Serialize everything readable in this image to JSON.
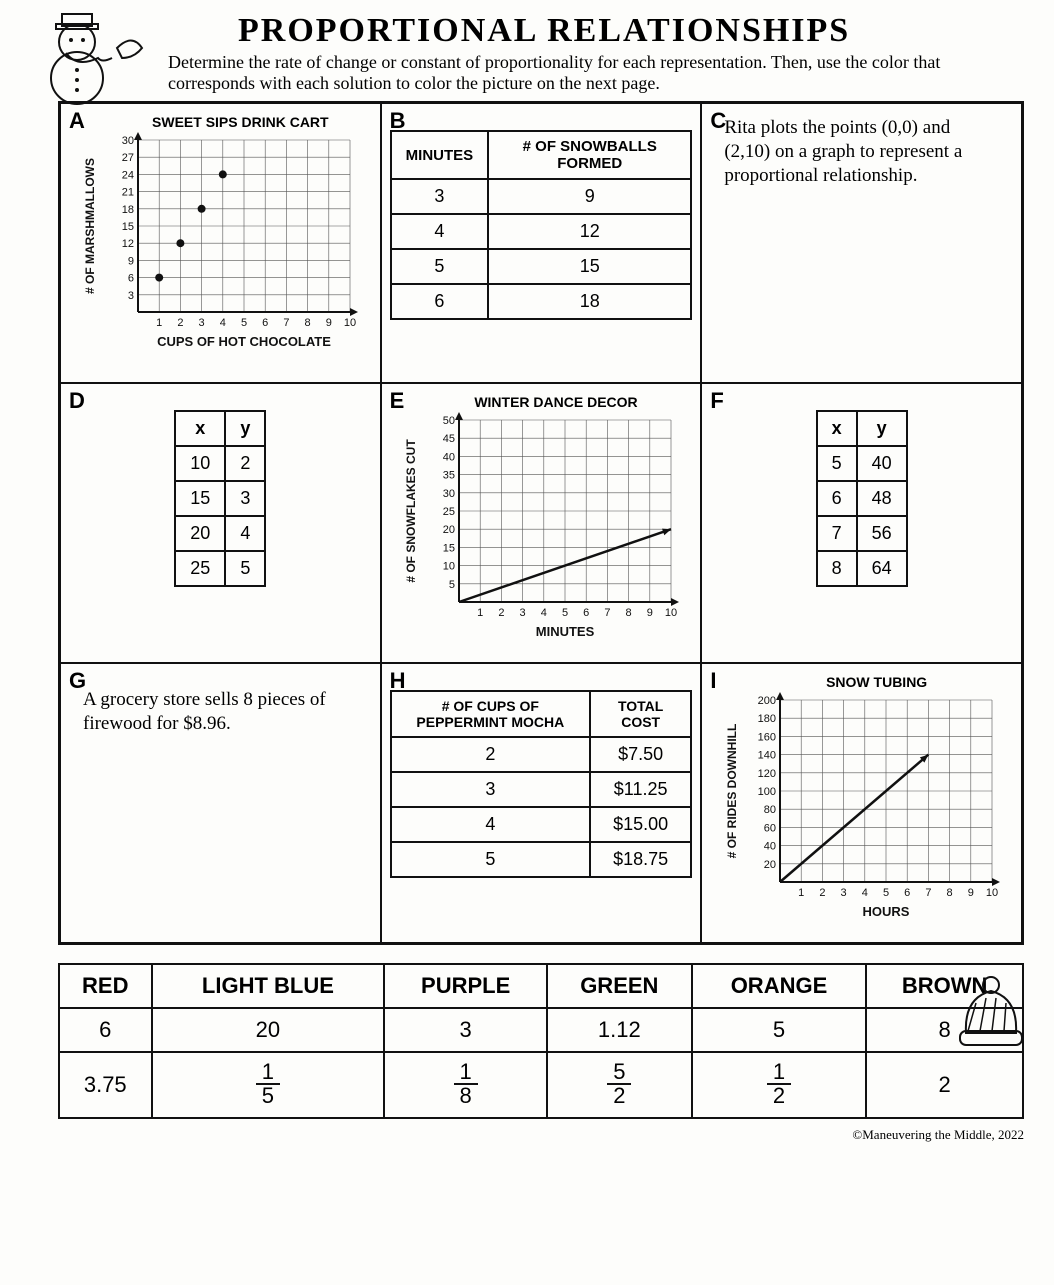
{
  "title": "PROPORTIONAL RELATIONSHIPS",
  "subtitle": "Determine the rate of change or constant of proportionality for each representation. Then, use the color that corresponds with each solution to color the picture on the next page.",
  "footer": "©Maneuvering the Middle, 2022",
  "colors": {
    "ink": "#111111",
    "paper": "#fdfdfb",
    "grid_line": "#444444"
  },
  "cells": {
    "A": {
      "label": "A",
      "chart": {
        "title": "SWEET SIPS DRINK CART",
        "xlabel": "CUPS OF HOT CHOCOLATE",
        "ylabel": "# OF MARSHMALLOWS",
        "xlim": [
          0,
          10
        ],
        "ylim": [
          0,
          30
        ],
        "xtick_step": 1,
        "ytick_step": 3,
        "points": [
          [
            1,
            6
          ],
          [
            2,
            12
          ],
          [
            3,
            18
          ],
          [
            4,
            24
          ]
        ],
        "marker_color": "#111111"
      }
    },
    "B": {
      "label": "B",
      "table": {
        "columns": [
          "MINUTES",
          "# OF SNOWBALLS FORMED"
        ],
        "rows": [
          [
            "3",
            "9"
          ],
          [
            "4",
            "12"
          ],
          [
            "5",
            "15"
          ],
          [
            "6",
            "18"
          ]
        ]
      }
    },
    "C": {
      "label": "C",
      "text": "Rita plots the points (0,0) and (2,10) on a graph to represent a proportional relationship."
    },
    "D": {
      "label": "D",
      "table": {
        "columns": [
          "x",
          "y"
        ],
        "rows": [
          [
            "10",
            "2"
          ],
          [
            "15",
            "3"
          ],
          [
            "20",
            "4"
          ],
          [
            "25",
            "5"
          ]
        ]
      }
    },
    "E": {
      "label": "E",
      "chart": {
        "title": "WINTER DANCE DECOR",
        "xlabel": "MINUTES",
        "ylabel": "# OF SNOWFLAKES CUT",
        "xlim": [
          0,
          10
        ],
        "ylim": [
          0,
          50
        ],
        "xtick_step": 1,
        "ytick_step": 5,
        "line": [
          [
            0,
            0
          ],
          [
            10,
            20
          ]
        ],
        "arrow": true,
        "line_color": "#111111"
      }
    },
    "F": {
      "label": "F",
      "table": {
        "columns": [
          "x",
          "y"
        ],
        "rows": [
          [
            "5",
            "40"
          ],
          [
            "6",
            "48"
          ],
          [
            "7",
            "56"
          ],
          [
            "8",
            "64"
          ]
        ]
      }
    },
    "G": {
      "label": "G",
      "text": "A grocery store sells 8 pieces of firewood for $8.96."
    },
    "H": {
      "label": "H",
      "table": {
        "columns": [
          "# OF CUPS OF PEPPERMINT MOCHA",
          "TOTAL COST"
        ],
        "rows": [
          [
            "2",
            "$7.50"
          ],
          [
            "3",
            "$11.25"
          ],
          [
            "4",
            "$15.00"
          ],
          [
            "5",
            "$18.75"
          ]
        ]
      }
    },
    "I": {
      "label": "I",
      "chart": {
        "title": "SNOW TUBING",
        "xlabel": "HOURS",
        "ylabel": "# OF RIDES DOWNHILL",
        "xlim": [
          0,
          10
        ],
        "ylim": [
          0,
          200
        ],
        "xtick_step": 1,
        "ytick_step": 20,
        "line": [
          [
            0,
            0
          ],
          [
            7,
            140
          ]
        ],
        "arrow": true,
        "line_color": "#111111"
      }
    }
  },
  "color_key": {
    "columns": [
      "RED",
      "LIGHT BLUE",
      "PURPLE",
      "GREEN",
      "ORANGE",
      "BROWN"
    ],
    "rows": [
      [
        "6",
        "20",
        "3",
        "1.12",
        "5",
        "8"
      ],
      [
        "3.75",
        "⅕",
        "⅛",
        "5⁄2",
        "½",
        "2"
      ]
    ],
    "rows_display": [
      [
        "6",
        "20",
        "3",
        "1.12",
        "5",
        "8"
      ],
      [
        "3.75",
        "1/5",
        "1/8",
        "5/2",
        "1/2",
        "2"
      ]
    ]
  }
}
